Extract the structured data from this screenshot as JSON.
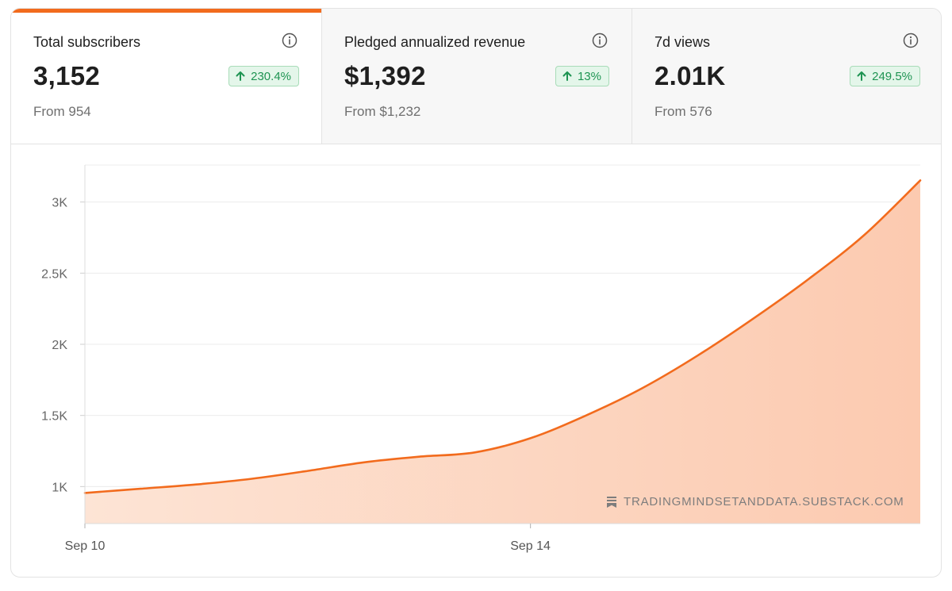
{
  "stats": [
    {
      "label": "Total subscribers",
      "value": "3,152",
      "change": "230.4%",
      "from": "From 954",
      "active": true
    },
    {
      "label": "Pledged annualized revenue",
      "value": "$1,392",
      "change": "13%",
      "from": "From $1,232",
      "active": false
    },
    {
      "label": "7d views",
      "value": "2.01K",
      "change": "249.5%",
      "from": "From 576",
      "active": false
    }
  ],
  "colors": {
    "accent": "#f26b1d",
    "fill": "#fcd5bf",
    "positive": "#1e9452"
  },
  "watermark": "TRADINGMINDSETANDDATA.SUBSTACK.COM",
  "chart_data": {
    "type": "area",
    "title": "",
    "xlabel": "",
    "ylabel": "",
    "x": [
      0,
      0.5,
      1,
      1.5,
      2,
      2.5,
      3,
      3.5,
      4,
      4.5,
      5,
      5.5,
      6,
      6.5,
      7,
      7.5
    ],
    "values": [
      955,
      985,
      1015,
      1055,
      1110,
      1170,
      1210,
      1240,
      1340,
      1500,
      1690,
      1920,
      2180,
      2460,
      2770,
      3152
    ],
    "x_ticks": [
      {
        "x": 0,
        "label": "Sep 10"
      },
      {
        "x": 4,
        "label": "Sep 14"
      }
    ],
    "y_ticks": [
      {
        "y": 1000,
        "label": "1K"
      },
      {
        "y": 1500,
        "label": "1.5K"
      },
      {
        "y": 2000,
        "label": "2K"
      },
      {
        "y": 2500,
        "label": "2.5K"
      },
      {
        "y": 3000,
        "label": "3K"
      }
    ],
    "xlim": [
      0,
      7.5
    ],
    "ylim": [
      740,
      3260
    ],
    "grid": true,
    "legend": "none"
  }
}
